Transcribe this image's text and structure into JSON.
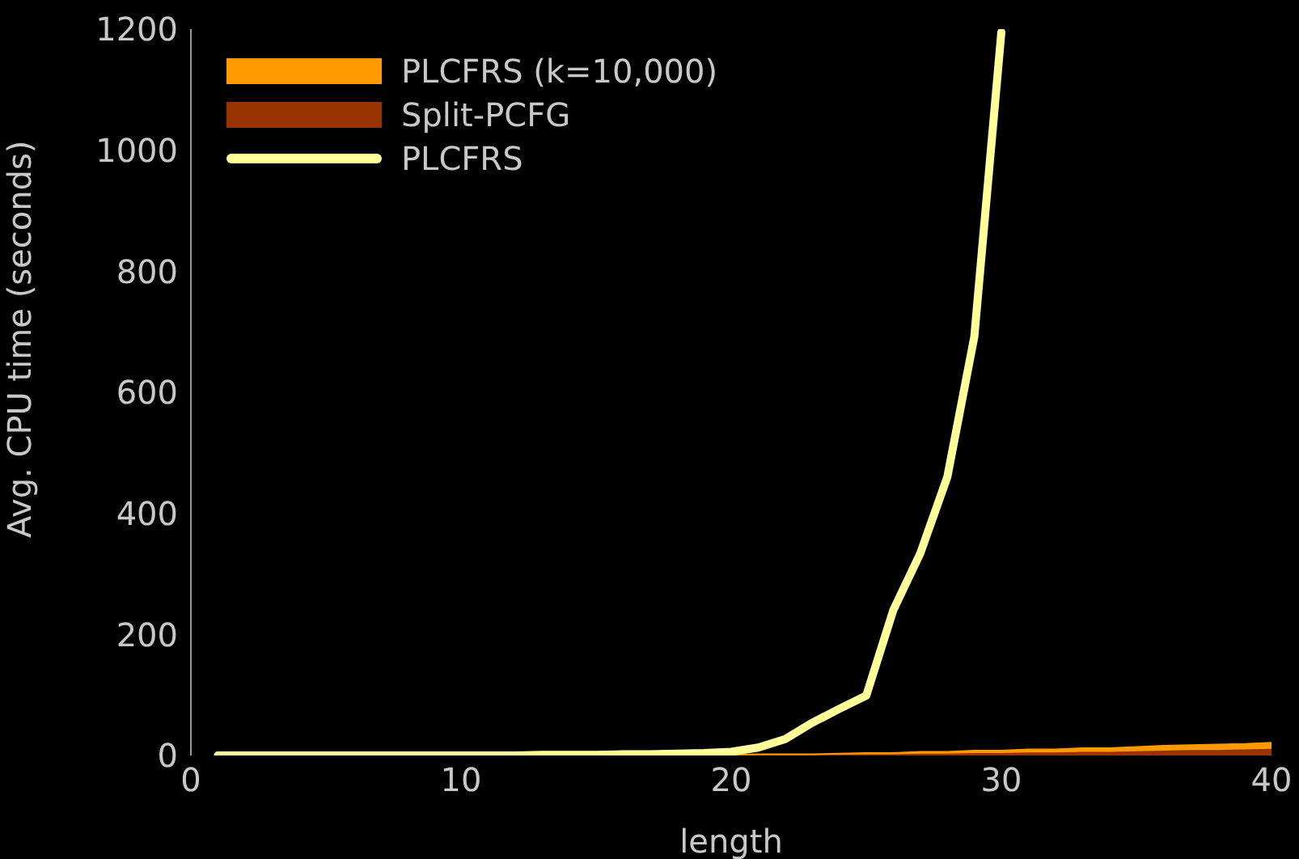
{
  "chart_data": {
    "type": "area",
    "stacked": true,
    "xlabel": "length",
    "ylabel": "Avg. CPU time (seconds)",
    "x": [
      1,
      2,
      3,
      4,
      5,
      6,
      7,
      8,
      9,
      10,
      11,
      12,
      13,
      14,
      15,
      16,
      17,
      18,
      19,
      20,
      21,
      22,
      23,
      24,
      25,
      26,
      27,
      28,
      29,
      30,
      31,
      32,
      33,
      34,
      35,
      36,
      37,
      38,
      39,
      40
    ],
    "series": [
      {
        "name": "Split-PCFG",
        "color": "#993300",
        "values": [
          0,
          0,
          0,
          0,
          0,
          0,
          0,
          0,
          0,
          0,
          0,
          0,
          0,
          0,
          0,
          0,
          0,
          0,
          0,
          1,
          1,
          1,
          1,
          2,
          2,
          2,
          3,
          3,
          4,
          4,
          5,
          5,
          6,
          6,
          7,
          8,
          9,
          9,
          10,
          11
        ]
      },
      {
        "name": "PLCFRS (k=10,000)",
        "color": "#ff9900",
        "values": [
          0,
          0,
          0,
          0,
          0,
          0,
          0,
          0,
          0,
          0,
          0,
          0,
          0,
          0,
          0,
          0,
          0,
          0,
          0,
          0,
          1,
          1,
          1,
          1,
          2,
          2,
          3,
          3,
          4,
          4,
          5,
          5,
          6,
          6,
          7,
          8,
          8,
          9,
          9,
          10
        ]
      },
      {
        "name": "PLCFRS",
        "type": "line",
        "color": "#ffff99",
        "values": [
          0,
          0,
          0,
          0,
          0,
          0,
          0,
          0,
          0,
          0,
          0,
          0,
          1,
          1,
          1,
          2,
          2,
          3,
          4,
          6,
          13,
          27,
          54,
          77,
          99,
          240,
          334,
          460,
          692,
          1195,
          null,
          null,
          null,
          null,
          null,
          null,
          null,
          null,
          null,
          null
        ]
      }
    ],
    "xlim": [
      0,
      40
    ],
    "xticks": [
      0,
      10,
      20,
      30,
      40
    ],
    "ylim": [
      0,
      1200
    ],
    "yticks": [
      0,
      200,
      400,
      600,
      800,
      1000,
      1200
    ],
    "grid": false,
    "legend": "top left",
    "marker": "none",
    "line_style": "solid"
  }
}
